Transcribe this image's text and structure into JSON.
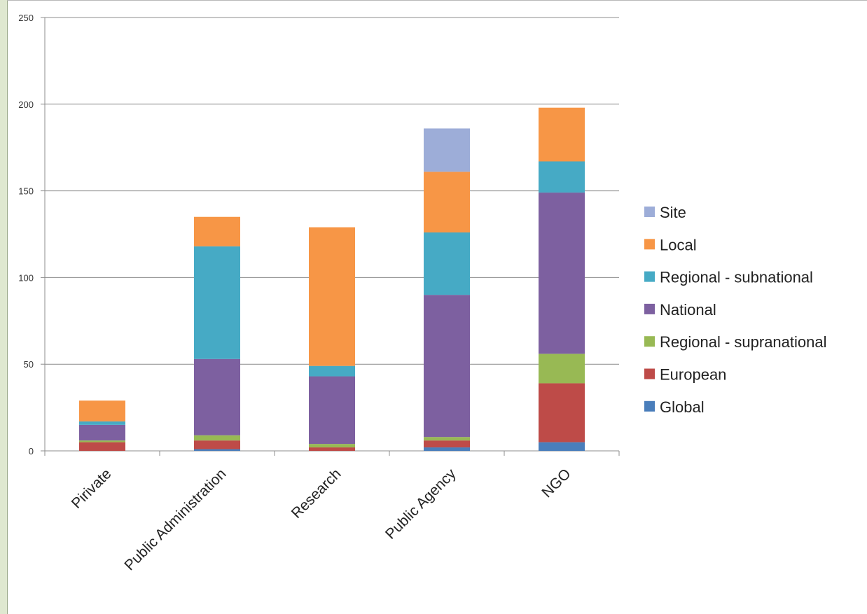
{
  "chart_data": {
    "type": "bar",
    "stacked": true,
    "title": "",
    "xlabel": "",
    "ylabel": "",
    "ylim": [
      0,
      250
    ],
    "yticks": [
      0,
      50,
      100,
      150,
      200,
      250
    ],
    "grid": true,
    "legend_position": "right",
    "categories": [
      "Pirivate",
      "Public Administration",
      "Research",
      "Public Agency",
      "NGO"
    ],
    "series": [
      {
        "name": "Global",
        "color": "#4a7ebb",
        "values": [
          0,
          1,
          0,
          2,
          5
        ]
      },
      {
        "name": "European",
        "color": "#be4b48",
        "values": [
          5,
          5,
          2,
          4,
          34
        ]
      },
      {
        "name": "Regional - supranational",
        "color": "#98b954",
        "values": [
          1,
          3,
          2,
          2,
          17
        ]
      },
      {
        "name": "National",
        "color": "#7d60a0",
        "values": [
          9,
          44,
          39,
          82,
          93
        ]
      },
      {
        "name": "Regional - subnational",
        "color": "#46aac5",
        "values": [
          2,
          65,
          6,
          36,
          18
        ]
      },
      {
        "name": "Local",
        "color": "#f79646",
        "values": [
          12,
          17,
          80,
          35,
          31
        ]
      },
      {
        "name": "Site",
        "color": "#9dadd8",
        "values": [
          0,
          0,
          0,
          25,
          0
        ]
      }
    ]
  }
}
